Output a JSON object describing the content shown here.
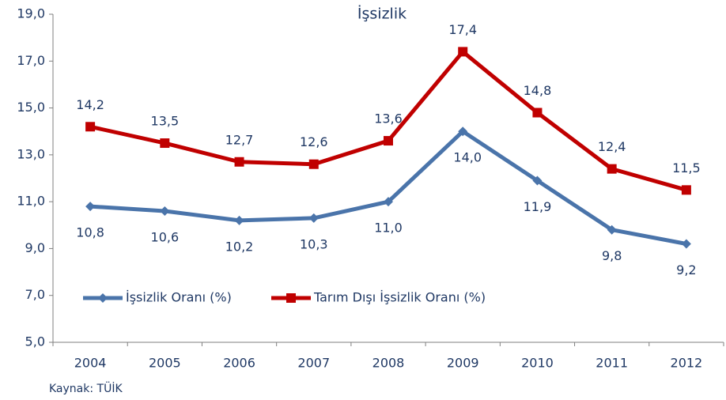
{
  "chart_data": {
    "type": "line",
    "title": "İşsizlik",
    "categories": [
      "2004",
      "2005",
      "2006",
      "2007",
      "2008",
      "2009",
      "2010",
      "2011",
      "2012"
    ],
    "series": [
      {
        "name": "İşsizlik Oranı (%)",
        "color": "#4a74aa",
        "marker": "diamond",
        "values": [
          10.8,
          10.6,
          10.2,
          10.3,
          11.0,
          14.0,
          11.9,
          9.8,
          9.2
        ],
        "value_labels": [
          "10,8",
          "10,6",
          "10,2",
          "10,3",
          "11,0",
          "14,0",
          "11,9",
          "9,8",
          "9,2"
        ]
      },
      {
        "name": "Tarım Dışı İşsizlik Oranı (%)",
        "color": "#c00000",
        "marker": "square",
        "values": [
          14.2,
          13.5,
          12.7,
          12.6,
          13.6,
          17.4,
          14.8,
          12.4,
          11.5
        ],
        "value_labels": [
          "14,2",
          "13,5",
          "12,7",
          "12,6",
          "13,6",
          "17,4",
          "14,8",
          "12,4",
          "11,5"
        ]
      }
    ],
    "ylim": [
      5,
      19
    ],
    "yticks": [
      {
        "value": 5,
        "label": "5,0"
      },
      {
        "value": 7,
        "label": "7,0"
      },
      {
        "value": 9,
        "label": "9,0"
      },
      {
        "value": 11,
        "label": "11,0"
      },
      {
        "value": 13,
        "label": "13,0"
      },
      {
        "value": 15,
        "label": "15,0"
      },
      {
        "value": 17,
        "label": "17,0"
      },
      {
        "value": 19,
        "label": "19,0"
      }
    ],
    "grid": false,
    "source": "Kaynak: TÜİK"
  }
}
